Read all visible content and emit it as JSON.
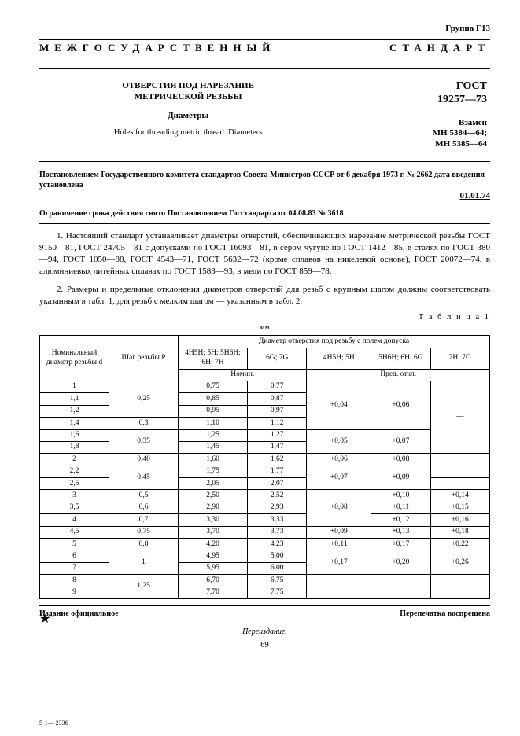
{
  "group_top": "Группа  Г13",
  "banner_left": "МЕЖГОСУДАРСТВЕННЫЙ",
  "banner_right": "СТАНДАРТ",
  "title_ru_1": "ОТВЕРСТИЯ ПОД НАРЕЗАНИЕ",
  "title_ru_2": "МЕТРИЧЕСКОЙ РЕЗЬБЫ",
  "title_sub": "Диаметры",
  "title_en": "Holes for threading metric thread.  Diameters",
  "gost_label": "ГОСТ",
  "gost_num": "19257—73",
  "replaces_1": "Взамен",
  "replaces_2": "МН 5384—64;",
  "replaces_3": "МН 5385—64",
  "decree_1": "Постановлением Государственного комитета стандартов Совета Министров СССР от 6 декабря 1973 г. № 2662 дата введения установлена",
  "decree_date": "01.01.74",
  "decree_2": "Ограничение срока действия снято Постановлением Госстандарта от 04.08.83 № 3618",
  "para_1": "1. Настоящий стандарт устанавливает диаметры отверстий, обеспечивающих нарезание метрической резьбы ГОСТ 9150—81, ГОСТ 24705—81 с допусками по ГОСТ 16093—81, в сером чугуне по ГОСТ 1412—85, в сталях по  ГОСТ 380—94, ГОСТ 1050—88, ГОСТ 4543—71, ГОСТ 5632—72 (кроме сплавов  на никелевой основе), ГОСТ 20072—74, в алюминиевых литейных сплавах по ГОСТ 1583—93, в меди по ГОСТ 859—78.",
  "para_2": "2. Размеры и предельные отклонения диаметров отверстий для резьб с крупным шагом должны соответствовать указанным в табл. 1, для резьб с мелким шагом — указанным в табл. 2.",
  "tab_label": "Т а б л и ц а  1",
  "mm": "мм",
  "headers": {
    "nominal": "Номинальный диаметр резьбы d",
    "pitch": "Шаг резьбы P",
    "diam_group": "Диаметр отверстия под резьбу с полем допуска",
    "col1": "4H5H; 5H; 5H6H; 6H; 7H",
    "col2": "6G; 7G",
    "col3": "4H5H; 5H",
    "col4": "5H6H; 6H; 6G",
    "col5": "7H; 7G",
    "nomin": "Номин.",
    "pred": "Пред. откл."
  },
  "rows": [
    {
      "d": "1",
      "p_span": 3,
      "p": "0,25",
      "n1": "0,75",
      "n2": "0,77",
      "t1_span": 4,
      "t1": "+0,04",
      "t2_span": 4,
      "t2": "+0,06",
      "t3_span": 6,
      "t3": "—"
    },
    {
      "d": "1,1",
      "n1": "0,85",
      "n2": "0,87"
    },
    {
      "d": "1,2",
      "n1": "0,95",
      "n2": "0,97"
    },
    {
      "d": "1,4",
      "p_span": 1,
      "p": "0,3",
      "n1": "1,10",
      "n2": "1,12"
    },
    {
      "d": "1,6",
      "p_span": 2,
      "p": "0,35",
      "n1": "1,25",
      "n2": "1,27",
      "t1_span": 2,
      "t1": "+0,05",
      "t2_span": 2,
      "t2": "+0,07"
    },
    {
      "d": "1,8",
      "n1": "1,45",
      "n2": "1,47"
    },
    {
      "d": "2",
      "p_span": 1,
      "p": "0,40",
      "n1": "1,60",
      "n2": "1,62",
      "t1_span": 1,
      "t1": "+0,06",
      "t2_span": 1,
      "t2": "+0,08",
      "t3_span": 1,
      "t3": ""
    },
    {
      "d": "2,2",
      "p_span": 2,
      "p": "0,45",
      "n1": "1,75",
      "n2": "1,77",
      "t1_span": 2,
      "t1": "+0,07",
      "t2_span": 2,
      "t2": "+0,09",
      "t3_span": 1,
      "t3": ""
    },
    {
      "d": "2,5",
      "n1": "2,05",
      "n2": "2,07",
      "t3_span": 1,
      "t3": ""
    },
    {
      "d": "3",
      "p_span": 1,
      "p": "0,5",
      "n1": "2,50",
      "n2": "2,52",
      "t1_span": 3,
      "t1": "+0,08",
      "t2_span": 1,
      "t2": "+0,10",
      "t3_span": 1,
      "t3": "+0,14"
    },
    {
      "d": "3,5",
      "p_span": 1,
      "p": "0,6",
      "n1": "2,90",
      "n2": "2,93",
      "t2_span": 1,
      "t2": "+0,11",
      "t3_span": 1,
      "t3": "+0,15"
    },
    {
      "d": "4",
      "p_span": 1,
      "p": "0,7",
      "n1": "3,30",
      "n2": "3,33",
      "t2_span": 1,
      "t2": "+0,12",
      "t3_span": 1,
      "t3": "+0,16"
    },
    {
      "d": "4,5",
      "p_span": 1,
      "p": "0,75",
      "n1": "3,70",
      "n2": "3,73",
      "t1_span": 1,
      "t1": "+0,09",
      "t2_span": 1,
      "t2": "+0,13",
      "t3_span": 1,
      "t3": "+0,18"
    },
    {
      "d": "5",
      "p_span": 1,
      "p": "0,8",
      "n1": "4,20",
      "n2": "4,23",
      "t1_span": 1,
      "t1": "+0,11",
      "t2_span": 1,
      "t2": "+0,17",
      "t3_span": 1,
      "t3": "+0,22"
    },
    {
      "d": "6",
      "p_span": 2,
      "p": "1",
      "n1": "4,95",
      "n2": "5,00",
      "t1_span": 2,
      "t1": "+0,17",
      "t2_span": 2,
      "t2": "+0,20",
      "t3_span": 2,
      "t3": "+0,26"
    },
    {
      "d": "7",
      "n1": "5,95",
      "n2": "6,00"
    },
    {
      "d": "8",
      "p_span": 2,
      "p": "1,25",
      "n1": "6,70",
      "n2": "6,75",
      "t1_span": 2,
      "t1": "",
      "t2_span": 2,
      "t2": "",
      "t3_span": 2,
      "t3": ""
    },
    {
      "d": "9",
      "n1": "7,70",
      "n2": "7,75"
    }
  ],
  "footer_left": "Издание официальное",
  "footer_right": "Перепечатка воспрещена",
  "star": "★",
  "reprint": "Переиздание.",
  "pagenum": "69",
  "sig": "5-1— 2336"
}
